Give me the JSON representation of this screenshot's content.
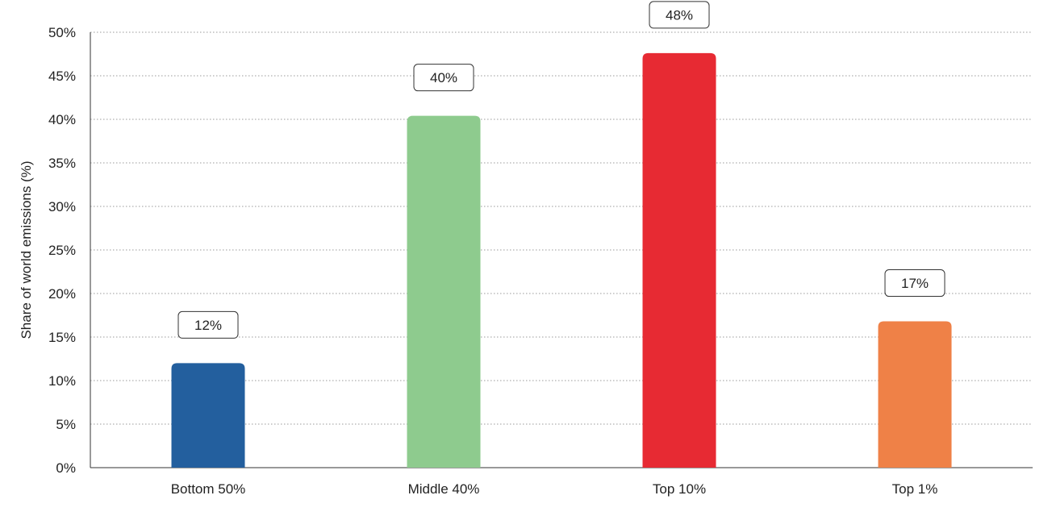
{
  "chart_data": {
    "type": "bar",
    "title": "",
    "xlabel": "",
    "ylabel": "Share of world emissions (%)",
    "ylim": [
      0,
      50
    ],
    "y_ticks": [
      0,
      5,
      10,
      15,
      20,
      25,
      30,
      35,
      40,
      45,
      50
    ],
    "y_tick_suffix": "%",
    "grid": true,
    "legend": "none",
    "categories": [
      "Bottom 50%",
      "Middle 40%",
      "Top 10%",
      "Top 1%"
    ],
    "values": [
      12,
      40.4,
      47.6,
      16.8
    ],
    "data_labels": [
      "12%",
      "40%",
      "48%",
      "17%"
    ],
    "colors": [
      "#235f9e",
      "#8ecb8e",
      "#e72a33",
      "#ef8147"
    ]
  }
}
